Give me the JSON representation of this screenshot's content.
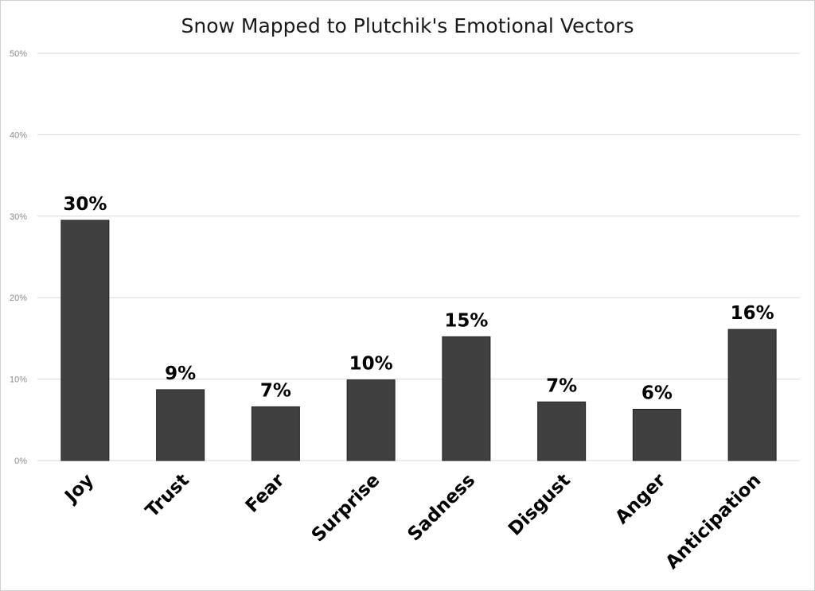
{
  "chart_data": {
    "type": "bar",
    "title": "Snow Mapped to Plutchik's Emotional Vectors",
    "categories": [
      "Joy",
      "Trust",
      "Fear",
      "Surprise",
      "Sadness",
      "Disgust",
      "Anger",
      "Anticipation"
    ],
    "values": [
      29.5,
      8.7,
      6.6,
      9.9,
      15.2,
      7.2,
      6.3,
      16.1
    ],
    "data_labels": [
      "30%",
      "9%",
      "7%",
      "10%",
      "15%",
      "7%",
      "6%",
      "16%"
    ],
    "y_ticks": [
      "0%",
      "10%",
      "20%",
      "30%",
      "40%",
      "50%"
    ],
    "y_tick_values": [
      0,
      10,
      20,
      30,
      40,
      50
    ],
    "ylim": [
      0,
      50
    ],
    "grid": true,
    "bar_color": "#404040",
    "legend": "none"
  }
}
